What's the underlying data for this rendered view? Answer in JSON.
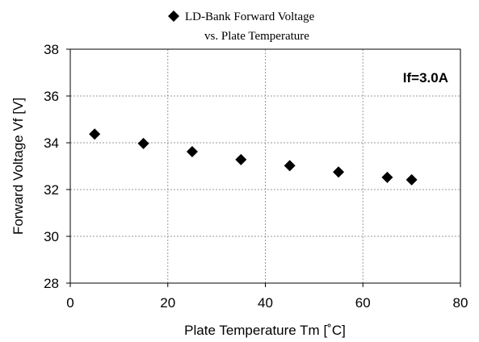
{
  "chart_data": {
    "type": "scatter",
    "legend": {
      "line1": "LD-Bank Forward Voltage",
      "line2": "vs. Plate Temperature",
      "marker": "diamond",
      "placement": "top"
    },
    "xlabel": "Plate Temperature Tm [˚C]",
    "ylabel": "Forward Voltage Vf [V]",
    "annotation": "If=3.0A",
    "xlim": [
      0,
      80
    ],
    "ylim": [
      28,
      38
    ],
    "xticks": [
      0,
      20,
      40,
      60,
      80
    ],
    "yticks": [
      28,
      30,
      32,
      34,
      36,
      38
    ],
    "xgrid_lines": [
      20,
      40,
      60
    ],
    "ygrid_lines": [
      30,
      32,
      34,
      36
    ],
    "grid": true,
    "series": [
      {
        "name": "LD-Bank Forward Voltage vs. Plate Temperature",
        "color": "#000000",
        "marker": "diamond",
        "points": [
          {
            "x": 5,
            "y": 34.37
          },
          {
            "x": 15,
            "y": 33.97
          },
          {
            "x": 25,
            "y": 33.62
          },
          {
            "x": 35,
            "y": 33.28
          },
          {
            "x": 45,
            "y": 33.02
          },
          {
            "x": 55,
            "y": 32.75
          },
          {
            "x": 65,
            "y": 32.52
          },
          {
            "x": 70,
            "y": 32.42
          }
        ]
      }
    ]
  }
}
